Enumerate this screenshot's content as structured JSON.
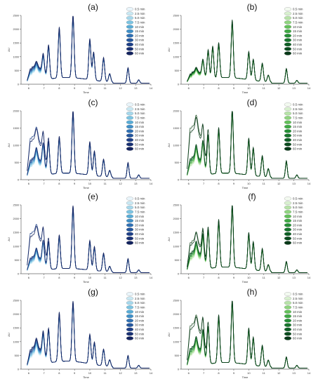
{
  "shared": {
    "xticks": [
      "6",
      "7",
      "8",
      "9",
      "10",
      "11",
      "12",
      "13",
      "14"
    ],
    "xlabel": "Time",
    "ylabel": "AU",
    "legend": [
      "0.5 min",
      "2.5 min",
      "5.0 min",
      "7.5 min",
      "10 min",
      "15 min",
      "20 min",
      "30 min",
      "40 min",
      "50 min",
      "60 min"
    ],
    "blue_palette": [
      "#e9f5fb",
      "#c9e8f3",
      "#a6d8ec",
      "#7cc4e2",
      "#58acd6",
      "#3f8fc7",
      "#2f70b3",
      "#24569d",
      "#1d3f87",
      "#172f72",
      "#12225e"
    ],
    "green_palette": [
      "#f3faf0",
      "#d8f0cf",
      "#b7e3a8",
      "#8fd47f",
      "#63c05a",
      "#3fa944",
      "#258f36",
      "#17752c",
      "#0e5e24",
      "#0a4a1d",
      "#073817"
    ]
  },
  "chart_data": [
    {
      "panel": "(a)",
      "type": "line",
      "palette": "blue",
      "ylim": [
        0,
        2500
      ],
      "yticks": [
        "0",
        "500",
        "1000",
        "1500",
        "2000",
        "2500"
      ],
      "xlim": [
        5.5,
        14
      ],
      "peaks": [
        [
          6.5,
          180
        ],
        [
          6.95,
          650
        ],
        [
          7.3,
          1150
        ],
        [
          8.0,
          1800
        ],
        [
          8.9,
          2250
        ],
        [
          10.0,
          1450
        ],
        [
          10.25,
          1000
        ],
        [
          10.9,
          850
        ],
        [
          11.3,
          300
        ],
        [
          12.5,
          550
        ],
        [
          13.2,
          120
        ]
      ],
      "early_top": 700,
      "early_bottom": 200,
      "highlight_early": 0
    },
    {
      "panel": "(b)",
      "type": "line",
      "palette": "green",
      "ylim": [
        0,
        2500
      ],
      "yticks": [
        "0",
        "500",
        "1000",
        "1500",
        "2000",
        "2500"
      ],
      "xlim": [
        5.5,
        14
      ],
      "peaks": [
        [
          6.5,
          150
        ],
        [
          6.95,
          550
        ],
        [
          7.3,
          1000
        ],
        [
          7.6,
          1150
        ],
        [
          8.0,
          1250
        ],
        [
          8.9,
          2050
        ],
        [
          10.0,
          1000
        ],
        [
          10.3,
          750
        ],
        [
          10.9,
          650
        ],
        [
          11.3,
          250
        ],
        [
          12.5,
          520
        ],
        [
          13.2,
          100
        ]
      ],
      "early_top": 450,
      "early_bottom": 200,
      "highlight_early": 0
    },
    {
      "panel": "(c)",
      "type": "line",
      "palette": "blue",
      "ylim": [
        0,
        2000
      ],
      "yticks": [
        "0",
        "500",
        "1000",
        "1500",
        "2000"
      ],
      "xlim": [
        5.5,
        14
      ],
      "peaks": [
        [
          6.5,
          300
        ],
        [
          6.95,
          650
        ],
        [
          7.3,
          900
        ],
        [
          8.0,
          1050
        ],
        [
          8.9,
          1800
        ],
        [
          10.0,
          950
        ],
        [
          10.3,
          700
        ],
        [
          10.9,
          500
        ],
        [
          11.3,
          200
        ],
        [
          12.5,
          450
        ],
        [
          13.2,
          100
        ]
      ],
      "early_top": 750,
      "early_bottom": 150,
      "highlight_early": 1550
    },
    {
      "panel": "(d)",
      "type": "line",
      "palette": "green",
      "ylim": [
        0,
        2000
      ],
      "yticks": [
        "0",
        "500",
        "1000",
        "1500",
        "2000"
      ],
      "xlim": [
        5.5,
        14
      ],
      "peaks": [
        [
          6.5,
          350
        ],
        [
          6.95,
          700
        ],
        [
          7.3,
          1100
        ],
        [
          8.0,
          1300
        ],
        [
          8.9,
          1850
        ],
        [
          10.0,
          1050
        ],
        [
          10.3,
          800
        ],
        [
          10.9,
          600
        ],
        [
          11.3,
          250
        ],
        [
          12.5,
          500
        ],
        [
          13.2,
          100
        ]
      ],
      "early_top": 800,
      "early_bottom": 150,
      "highlight_early": 1950
    },
    {
      "panel": "(e)",
      "type": "line",
      "palette": "blue",
      "ylim": [
        0,
        2500
      ],
      "yticks": [
        "0",
        "500",
        "1000",
        "1500",
        "2000",
        "2500"
      ],
      "xlim": [
        5.5,
        14
      ],
      "peaks": [
        [
          6.5,
          300
        ],
        [
          6.95,
          800
        ],
        [
          7.3,
          950
        ],
        [
          8.0,
          1200
        ],
        [
          8.9,
          2250
        ],
        [
          10.0,
          1050
        ],
        [
          10.3,
          850
        ],
        [
          10.9,
          650
        ],
        [
          11.3,
          200
        ],
        [
          12.5,
          500
        ],
        [
          13.2,
          100
        ]
      ],
      "early_top": 750,
      "early_bottom": 150,
      "highlight_early": 1900
    },
    {
      "panel": "(f)",
      "type": "line",
      "palette": "green",
      "ylim": [
        0,
        2500
      ],
      "yticks": [
        "0",
        "500",
        "1000",
        "1500",
        "2000",
        "2500"
      ],
      "xlim": [
        5.5,
        14
      ],
      "peaks": [
        [
          6.5,
          350
        ],
        [
          6.95,
          900
        ],
        [
          7.3,
          1350
        ],
        [
          8.0,
          1700
        ],
        [
          8.9,
          2250
        ],
        [
          10.0,
          1300
        ],
        [
          10.3,
          1000
        ],
        [
          10.9,
          800
        ],
        [
          11.3,
          250
        ],
        [
          12.5,
          400
        ],
        [
          13.2,
          100
        ]
      ],
      "early_top": 1000,
      "early_bottom": 200,
      "highlight_early": 1450
    },
    {
      "panel": "(g)",
      "type": "line",
      "palette": "blue",
      "ylim": [
        0,
        2500
      ],
      "yticks": [
        "0",
        "500",
        "1000",
        "1500",
        "2000",
        "2500"
      ],
      "xlim": [
        5.5,
        14
      ],
      "peaks": [
        [
          6.5,
          300
        ],
        [
          6.95,
          800
        ],
        [
          7.3,
          1150
        ],
        [
          8.0,
          1750
        ],
        [
          8.9,
          2150
        ],
        [
          10.0,
          1050
        ],
        [
          10.3,
          800
        ],
        [
          10.9,
          600
        ],
        [
          11.3,
          250
        ],
        [
          12.5,
          450
        ],
        [
          13.2,
          100
        ]
      ],
      "early_top": 900,
      "early_bottom": 250,
      "highlight_early": 0
    },
    {
      "panel": "(h)",
      "type": "line",
      "palette": "green",
      "ylim": [
        0,
        2500
      ],
      "yticks": [
        "0",
        "500",
        "1000",
        "1500",
        "2000",
        "2500"
      ],
      "xlim": [
        5.5,
        14
      ],
      "peaks": [
        [
          6.5,
          350
        ],
        [
          6.95,
          900
        ],
        [
          7.3,
          1300
        ],
        [
          8.0,
          1700
        ],
        [
          8.9,
          2250
        ],
        [
          10.0,
          1300
        ],
        [
          10.3,
          1000
        ],
        [
          10.9,
          750
        ],
        [
          11.3,
          250
        ],
        [
          12.5,
          400
        ],
        [
          13.2,
          100
        ]
      ],
      "early_top": 1000,
      "early_bottom": 200,
      "highlight_early": 2050
    }
  ]
}
